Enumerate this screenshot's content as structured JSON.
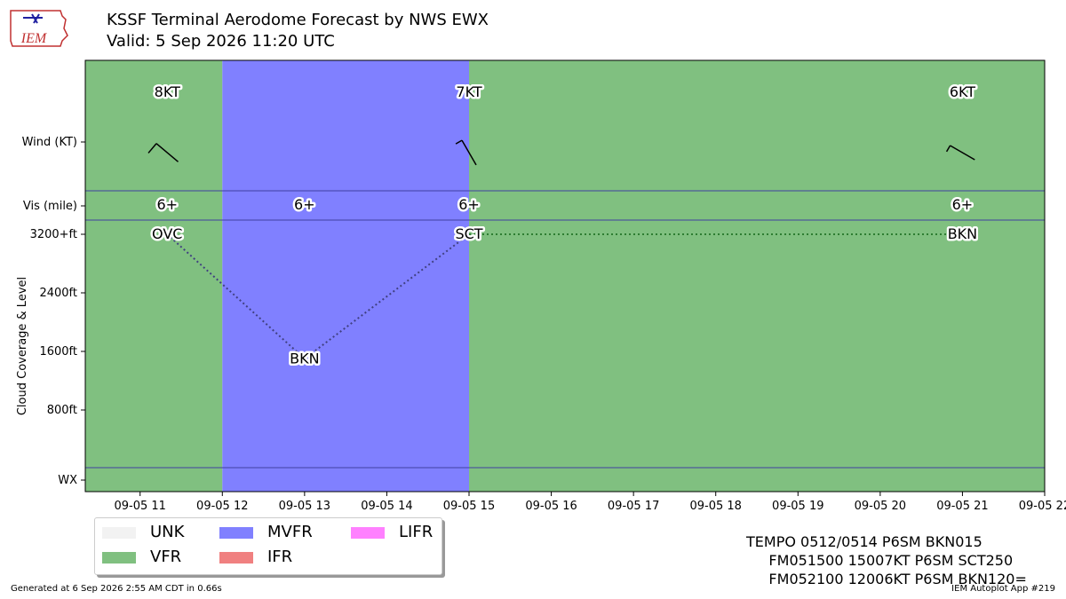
{
  "header": {
    "title": "KSSF Terminal Aerodome Forecast by NWS EWX",
    "subtitle": "Valid: 5 Sep 2026 11:20 UTC",
    "logo_text": "IEM"
  },
  "colors": {
    "VFR": "#80c080",
    "MVFR": "#8080ff",
    "IFR": "#f08080",
    "LIFR": "#ff80ff",
    "UNK": "#f2f2f2",
    "grid_line": "#4040a0"
  },
  "chart_data": {
    "type": "line",
    "x_range": [
      "2026-09-05 10:20",
      "2026-09-05 22:00"
    ],
    "x_tick_labels": [
      "09-05 11",
      "09-05 12",
      "09-05 13",
      "09-05 14",
      "09-05 15",
      "09-05 16",
      "09-05 17",
      "09-05 18",
      "09-05 19",
      "09-05 20",
      "09-05 21",
      "09-05 22"
    ],
    "x_tick_hours": [
      11,
      12,
      13,
      14,
      15,
      16,
      17,
      18,
      19,
      20,
      21,
      22
    ],
    "y_labels": {
      "wind": "Wind (KT)",
      "vis": "Vis (mile)",
      "cloud_axis": "Cloud Coverage & Level",
      "wx": "WX"
    },
    "cloud_ticks": [
      {
        "label": "800ft",
        "value": 800
      },
      {
        "label": "1600ft",
        "value": 1600
      },
      {
        "label": "2400ft",
        "value": 2400
      },
      {
        "label": "3200+ft",
        "value": 3200
      }
    ],
    "category_bands": [
      {
        "category": "VFR",
        "start_hour": 10.33,
        "end_hour": 12
      },
      {
        "category": "MVFR",
        "start_hour": 12,
        "end_hour": 15
      },
      {
        "category": "VFR",
        "start_hour": 15,
        "end_hour": 22
      }
    ],
    "wind": [
      {
        "hour": 11.33,
        "label": "8KT",
        "speed": 8,
        "direction_deg": 130
      },
      {
        "hour": 15.0,
        "label": "7KT",
        "speed": 7,
        "direction_deg": 150
      },
      {
        "hour": 21.0,
        "label": "6KT",
        "speed": 6,
        "direction_deg": 120
      }
    ],
    "visibility": [
      {
        "hour": 11.33,
        "label": "6+"
      },
      {
        "hour": 13.0,
        "label": "6+"
      },
      {
        "hour": 15.0,
        "label": "6+"
      },
      {
        "hour": 21.0,
        "label": "6+"
      }
    ],
    "clouds": [
      {
        "hour": 11.33,
        "label": "OVC",
        "level_ft": 3200
      },
      {
        "hour": 13.0,
        "label": "BKN",
        "level_ft": 1500
      },
      {
        "hour": 15.0,
        "label": "SCT",
        "level_ft": 3200
      },
      {
        "hour": 21.0,
        "label": "BKN",
        "level_ft": 3200
      }
    ],
    "cloud_links": [
      {
        "from": 0,
        "to": 1,
        "color": "#404080"
      },
      {
        "from": 1,
        "to": 2,
        "color": "#404080"
      },
      {
        "from": 2,
        "to": 3,
        "color": "#2e7d32"
      }
    ]
  },
  "legend": {
    "items": [
      {
        "label": "UNK",
        "color": "#f2f2f2"
      },
      {
        "label": "VFR",
        "color": "#80c080"
      },
      {
        "label": "MVFR",
        "color": "#8080ff"
      },
      {
        "label": "IFR",
        "color": "#f08080"
      },
      {
        "label": "LIFR",
        "color": "#ff80ff"
      }
    ]
  },
  "taf_text": "TEMPO 0512/0514 P6SM BKN015\n     FM051500 15007KT P6SM SCT250\n     FM052100 12006KT P6SM BKN120=",
  "footer": {
    "left": "Generated at 6 Sep 2026 2:55 AM CDT in 0.66s",
    "right": "IEM Autoplot App #219"
  }
}
